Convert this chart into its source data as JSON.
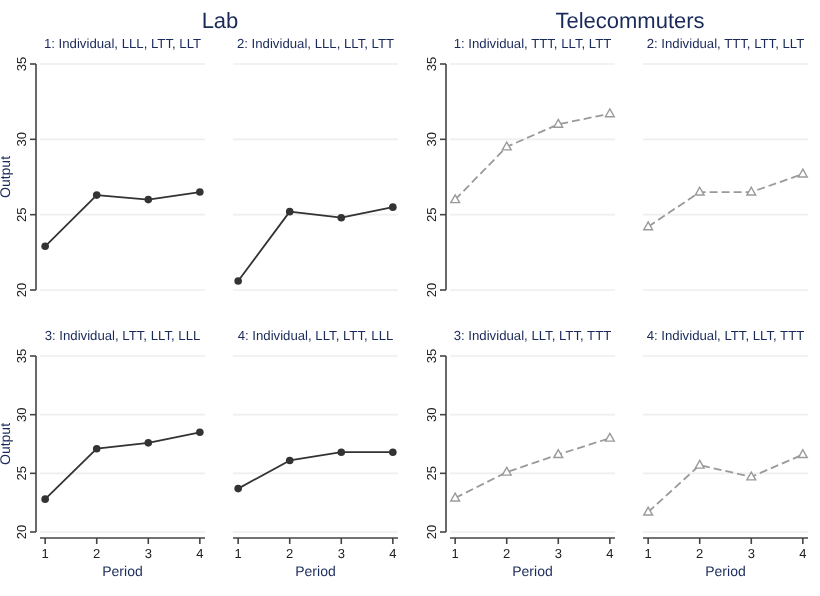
{
  "chart_data": [
    {
      "type": "line",
      "title": "1: Individual, LLL, LTT, LLT",
      "annotations": [
        "Lab"
      ],
      "ylabel": "Output",
      "x": [
        1,
        2,
        3,
        4
      ],
      "series": [
        {
          "color": "#333333",
          "values": [
            22.9,
            26.3,
            26.0,
            26.5
          ]
        }
      ],
      "xlim": [
        0.9,
        4.1
      ],
      "ylim": [
        20,
        35
      ],
      "yticks": [
        20,
        25,
        30,
        35
      ],
      "grid": "y",
      "marker": "circle",
      "line_style": "solid",
      "tick_labels": "y"
    },
    {
      "type": "line",
      "title": "2: Individual, LLL, LLT, LTT",
      "x": [
        1,
        2,
        3,
        4
      ],
      "series": [
        {
          "color": "#333333",
          "values": [
            20.6,
            25.2,
            24.8,
            25.5
          ]
        }
      ],
      "xlim": [
        0.9,
        4.1
      ],
      "ylim": [
        20,
        35
      ],
      "yticks": [
        20,
        25,
        30,
        35
      ],
      "grid": "y",
      "marker": "circle",
      "line_style": "solid",
      "tick_labels": false
    },
    {
      "type": "line",
      "title": "1: Individual, TTT, LLT, LTT",
      "annotations": [
        "Telecommuters"
      ],
      "x": [
        1,
        2,
        3,
        4
      ],
      "series": [
        {
          "color": "#9a9a9a",
          "values": [
            26.0,
            29.5,
            31.0,
            31.7
          ]
        }
      ],
      "xlim": [
        0.9,
        4.1
      ],
      "ylim": [
        20,
        35
      ],
      "yticks": [
        20,
        25,
        30,
        35
      ],
      "grid": "y",
      "marker": "triangle",
      "line_style": "dashed",
      "tick_labels": "y"
    },
    {
      "type": "line",
      "title": "2: Individual, TTT, LTT, LLT",
      "x": [
        1,
        2,
        3,
        4
      ],
      "series": [
        {
          "color": "#9a9a9a",
          "values": [
            24.2,
            26.5,
            26.5,
            27.7
          ]
        }
      ],
      "xlim": [
        0.9,
        4.1
      ],
      "ylim": [
        20,
        35
      ],
      "yticks": [
        20,
        25,
        30,
        35
      ],
      "grid": "y",
      "marker": "triangle",
      "line_style": "dashed",
      "tick_labels": false
    },
    {
      "type": "line",
      "title": "3: Individual, LTT, LLT, LLL",
      "ylabel": "Output",
      "xlabel": "Period",
      "x": [
        1,
        2,
        3,
        4
      ],
      "series": [
        {
          "color": "#333333",
          "values": [
            22.8,
            27.1,
            27.6,
            28.5
          ]
        }
      ],
      "xlim": [
        0.9,
        4.1
      ],
      "xticks": [
        1,
        2,
        3,
        4
      ],
      "ylim": [
        20,
        35
      ],
      "yticks": [
        20,
        25,
        30,
        35
      ],
      "grid": "y",
      "marker": "circle",
      "line_style": "solid"
    },
    {
      "type": "line",
      "title": "4: Individual, LLT, LTT, LLL",
      "xlabel": "Period",
      "x": [
        1,
        2,
        3,
        4
      ],
      "series": [
        {
          "color": "#333333",
          "values": [
            23.7,
            26.1,
            26.8,
            26.8
          ]
        }
      ],
      "xlim": [
        0.9,
        4.1
      ],
      "xticks": [
        1,
        2,
        3,
        4
      ],
      "ylim": [
        20,
        35
      ],
      "yticks": [
        20,
        25,
        30,
        35
      ],
      "grid": "y",
      "marker": "circle",
      "line_style": "solid",
      "tick_labels": "x"
    },
    {
      "type": "line",
      "title": "3: Individual, LLT, LTT, TTT",
      "xlabel": "Period",
      "x": [
        1,
        2,
        3,
        4
      ],
      "series": [
        {
          "color": "#9a9a9a",
          "values": [
            22.9,
            25.1,
            26.6,
            28.0
          ]
        }
      ],
      "xlim": [
        0.9,
        4.1
      ],
      "xticks": [
        1,
        2,
        3,
        4
      ],
      "ylim": [
        20,
        35
      ],
      "yticks": [
        20,
        25,
        30,
        35
      ],
      "grid": "y",
      "marker": "triangle",
      "line_style": "dashed"
    },
    {
      "type": "line",
      "title": "4: Individual, LTT, LLT, TTT",
      "xlabel": "Period",
      "x": [
        1,
        2,
        3,
        4
      ],
      "series": [
        {
          "color": "#9a9a9a",
          "values": [
            21.7,
            25.7,
            24.7,
            26.6
          ]
        }
      ],
      "xlim": [
        0.9,
        4.1
      ],
      "xticks": [
        1,
        2,
        3,
        4
      ],
      "ylim": [
        20,
        35
      ],
      "yticks": [
        20,
        25,
        30,
        35
      ],
      "grid": "y",
      "marker": "triangle",
      "line_style": "dashed",
      "tick_labels": "x"
    }
  ]
}
